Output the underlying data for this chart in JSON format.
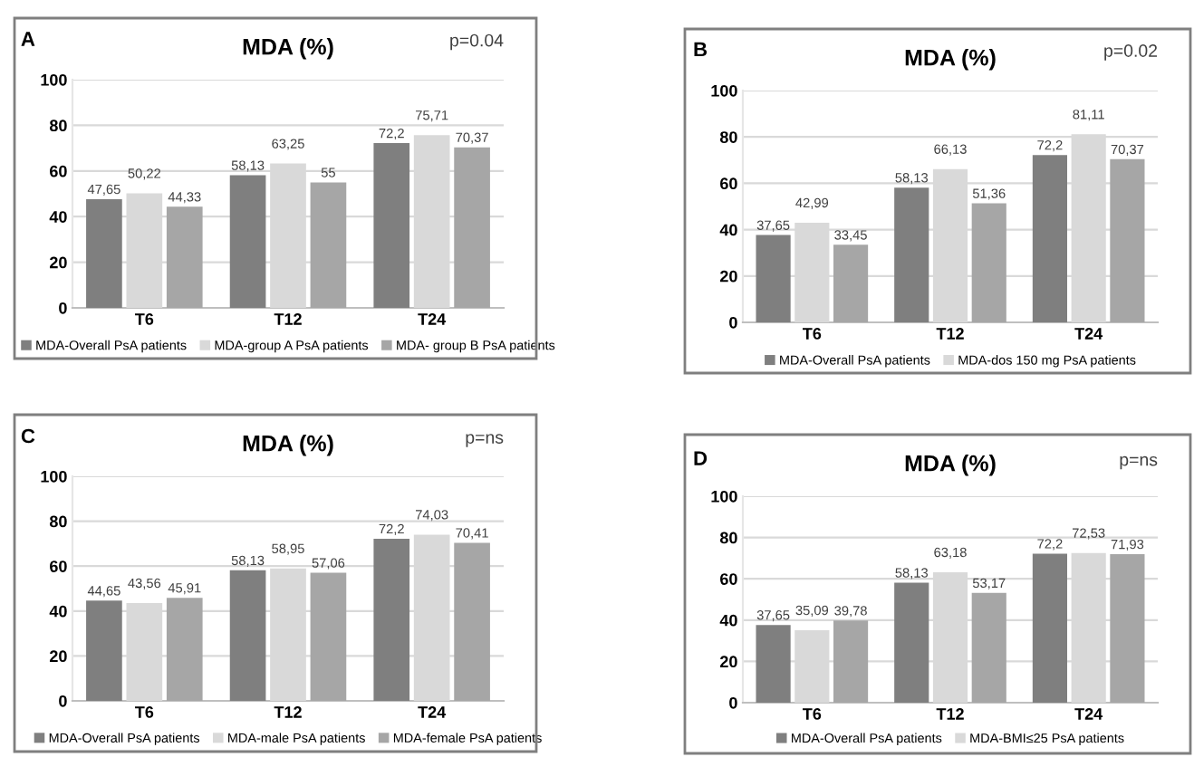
{
  "chart_data": [
    {
      "type": "bar",
      "title": "MDA (%)",
      "annotations": [
        "A",
        "p=0.04"
      ],
      "categories": [
        "T6",
        "T12",
        "T24"
      ],
      "ylim": [
        0,
        100
      ],
      "yticks": [
        0,
        20,
        40,
        60,
        80,
        100
      ],
      "grid": "y",
      "legend": "bottom",
      "series": [
        {
          "name": "MDA-Overall PsA patients",
          "color": "#7f7f7f",
          "values": [
            47.65,
            58.13,
            72.2
          ],
          "value_labels": [
            "47,65",
            "58,13",
            "72,2"
          ]
        },
        {
          "name": "MDA-group A PsA patients",
          "color": "#d9d9d9",
          "values": [
            50.22,
            63.25,
            75.71
          ],
          "value_labels": [
            "50,22",
            "63,25",
            "75,71"
          ]
        },
        {
          "name": "MDA- group B PsA patients",
          "color": "#a6a6a6",
          "values": [
            44.33,
            55,
            70.37
          ],
          "value_labels": [
            "44,33",
            "55",
            "70,37"
          ]
        }
      ]
    },
    {
      "type": "bar",
      "title": "MDA (%)",
      "annotations": [
        "B",
        "p=0.02"
      ],
      "categories": [
        "T6",
        "T12",
        "T24"
      ],
      "ylim": [
        0,
        100
      ],
      "yticks": [
        0,
        20,
        40,
        60,
        80,
        100
      ],
      "grid": "y",
      "legend": "bottom",
      "series": [
        {
          "name": "MDA-Overall PsA patients",
          "color": "#7f7f7f",
          "values": [
            37.65,
            58.13,
            72.2
          ],
          "value_labels": [
            "37,65",
            "58,13",
            "72,2"
          ]
        },
        {
          "name": "MDA-dos 150 mg PsA patients",
          "color": "#d9d9d9",
          "values": [
            42.99,
            66.13,
            81.11
          ],
          "value_labels": [
            "42,99",
            "66,13",
            "81,11"
          ]
        },
        {
          "color": "#a6a6a6",
          "values": [
            33.45,
            51.36,
            70.37
          ],
          "value_labels": [
            "33,45",
            "51,36",
            "70,37"
          ]
        }
      ]
    },
    {
      "type": "bar",
      "title": "MDA (%)",
      "annotations": [
        "C",
        "p=ns"
      ],
      "categories": [
        "T6",
        "T12",
        "T24"
      ],
      "ylim": [
        0,
        100
      ],
      "yticks": [
        0,
        20,
        40,
        60,
        80,
        100
      ],
      "grid": "y",
      "legend": "bottom",
      "series": [
        {
          "name": "MDA-Overall PsA patients",
          "color": "#7f7f7f",
          "values": [
            44.65,
            58.13,
            72.2
          ],
          "value_labels": [
            "44,65",
            "58,13",
            "72,2"
          ]
        },
        {
          "name": "MDA-male PsA patients",
          "color": "#d9d9d9",
          "values": [
            43.56,
            58.95,
            74.03
          ],
          "value_labels": [
            "43,56",
            "58,95",
            "74,03"
          ]
        },
        {
          "name": "MDA-female PsA patients",
          "color": "#a6a6a6",
          "values": [
            45.91,
            57.06,
            70.41
          ],
          "value_labels": [
            "45,91",
            "57,06",
            "70,41"
          ]
        }
      ]
    },
    {
      "type": "bar",
      "title": "MDA (%)",
      "annotations": [
        "D",
        "p=ns"
      ],
      "categories": [
        "T6",
        "T12",
        "T24"
      ],
      "ylim": [
        0,
        100
      ],
      "yticks": [
        0,
        20,
        40,
        60,
        80,
        100
      ],
      "grid": "y",
      "legend": "bottom",
      "series": [
        {
          "name": "MDA-Overall PsA patients",
          "color": "#7f7f7f",
          "values": [
            37.65,
            58.13,
            72.2
          ],
          "value_labels": [
            "37,65",
            "58,13",
            "72,2"
          ]
        },
        {
          "name": "MDA-BMI≤25 PsA patients",
          "color": "#d9d9d9",
          "values": [
            35.09,
            63.18,
            72.53
          ],
          "value_labels": [
            "35,09",
            "63,18",
            "72,53"
          ]
        },
        {
          "color": "#a6a6a6",
          "values": [
            39.78,
            53.17,
            71.93
          ],
          "value_labels": [
            "39,78",
            "53,17",
            "71,93"
          ]
        }
      ]
    }
  ]
}
